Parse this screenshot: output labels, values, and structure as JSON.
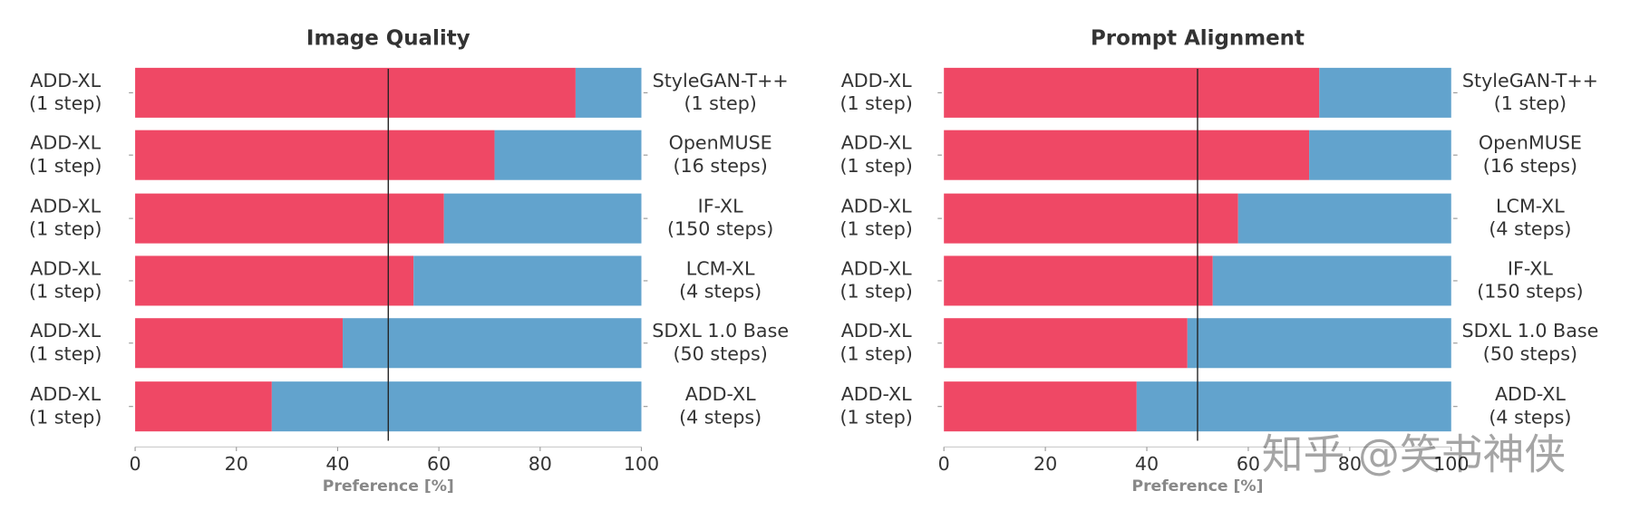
{
  "chart_data": [
    {
      "type": "stacked-barh",
      "title": "Image Quality",
      "xlabel": "Preference [%]",
      "left_labels": [
        [
          "ADD-XL",
          "(1 step)"
        ],
        [
          "ADD-XL",
          "(1 step)"
        ],
        [
          "ADD-XL",
          "(1 step)"
        ],
        [
          "ADD-XL",
          "(1 step)"
        ],
        [
          "ADD-XL",
          "(1 step)"
        ],
        [
          "ADD-XL",
          "(1 step)"
        ]
      ],
      "categories": [
        [
          "StyleGAN-T++",
          "(1 step)"
        ],
        [
          "OpenMUSE",
          "(16 steps)"
        ],
        [
          "IF-XL",
          "(150 steps)"
        ],
        [
          "LCM-XL",
          "(4 steps)"
        ],
        [
          "SDXL 1.0 Base",
          "(50 steps)"
        ],
        [
          "ADD-XL",
          "(4 steps)"
        ]
      ],
      "series": [
        {
          "color": "#ef4865",
          "values": [
            87,
            71,
            61,
            55,
            41,
            27
          ]
        },
        {
          "color": "#62a3cd",
          "values": [
            13,
            29,
            39,
            45,
            59,
            73
          ]
        }
      ],
      "xlim": [
        0,
        100
      ],
      "xticks": [
        0,
        20,
        40,
        60,
        80,
        100
      ],
      "reference_line": 50
    },
    {
      "type": "stacked-barh",
      "title": "Prompt Alignment",
      "xlabel": "Preference [%]",
      "left_labels": [
        [
          "ADD-XL",
          "(1 step)"
        ],
        [
          "ADD-XL",
          "(1 step)"
        ],
        [
          "ADD-XL",
          "(1 step)"
        ],
        [
          "ADD-XL",
          "(1 step)"
        ],
        [
          "ADD-XL",
          "(1 step)"
        ],
        [
          "ADD-XL",
          "(1 step)"
        ]
      ],
      "categories": [
        [
          "StyleGAN-T++",
          "(1 step)"
        ],
        [
          "OpenMUSE",
          "(16 steps)"
        ],
        [
          "LCM-XL",
          "(4 steps)"
        ],
        [
          "IF-XL",
          "(150 steps)"
        ],
        [
          "SDXL 1.0 Base",
          "(50 steps)"
        ],
        [
          "ADD-XL",
          "(4 steps)"
        ]
      ],
      "series": [
        {
          "color": "#ef4865",
          "values": [
            74,
            72,
            58,
            53,
            48,
            38
          ]
        },
        {
          "color": "#62a3cd",
          "values": [
            26,
            28,
            42,
            47,
            52,
            62
          ]
        }
      ],
      "xlim": [
        0,
        100
      ],
      "xticks": [
        0,
        20,
        40,
        60,
        80,
        100
      ],
      "reference_line": 50
    }
  ],
  "watermark": "知乎 @笑书神侠"
}
